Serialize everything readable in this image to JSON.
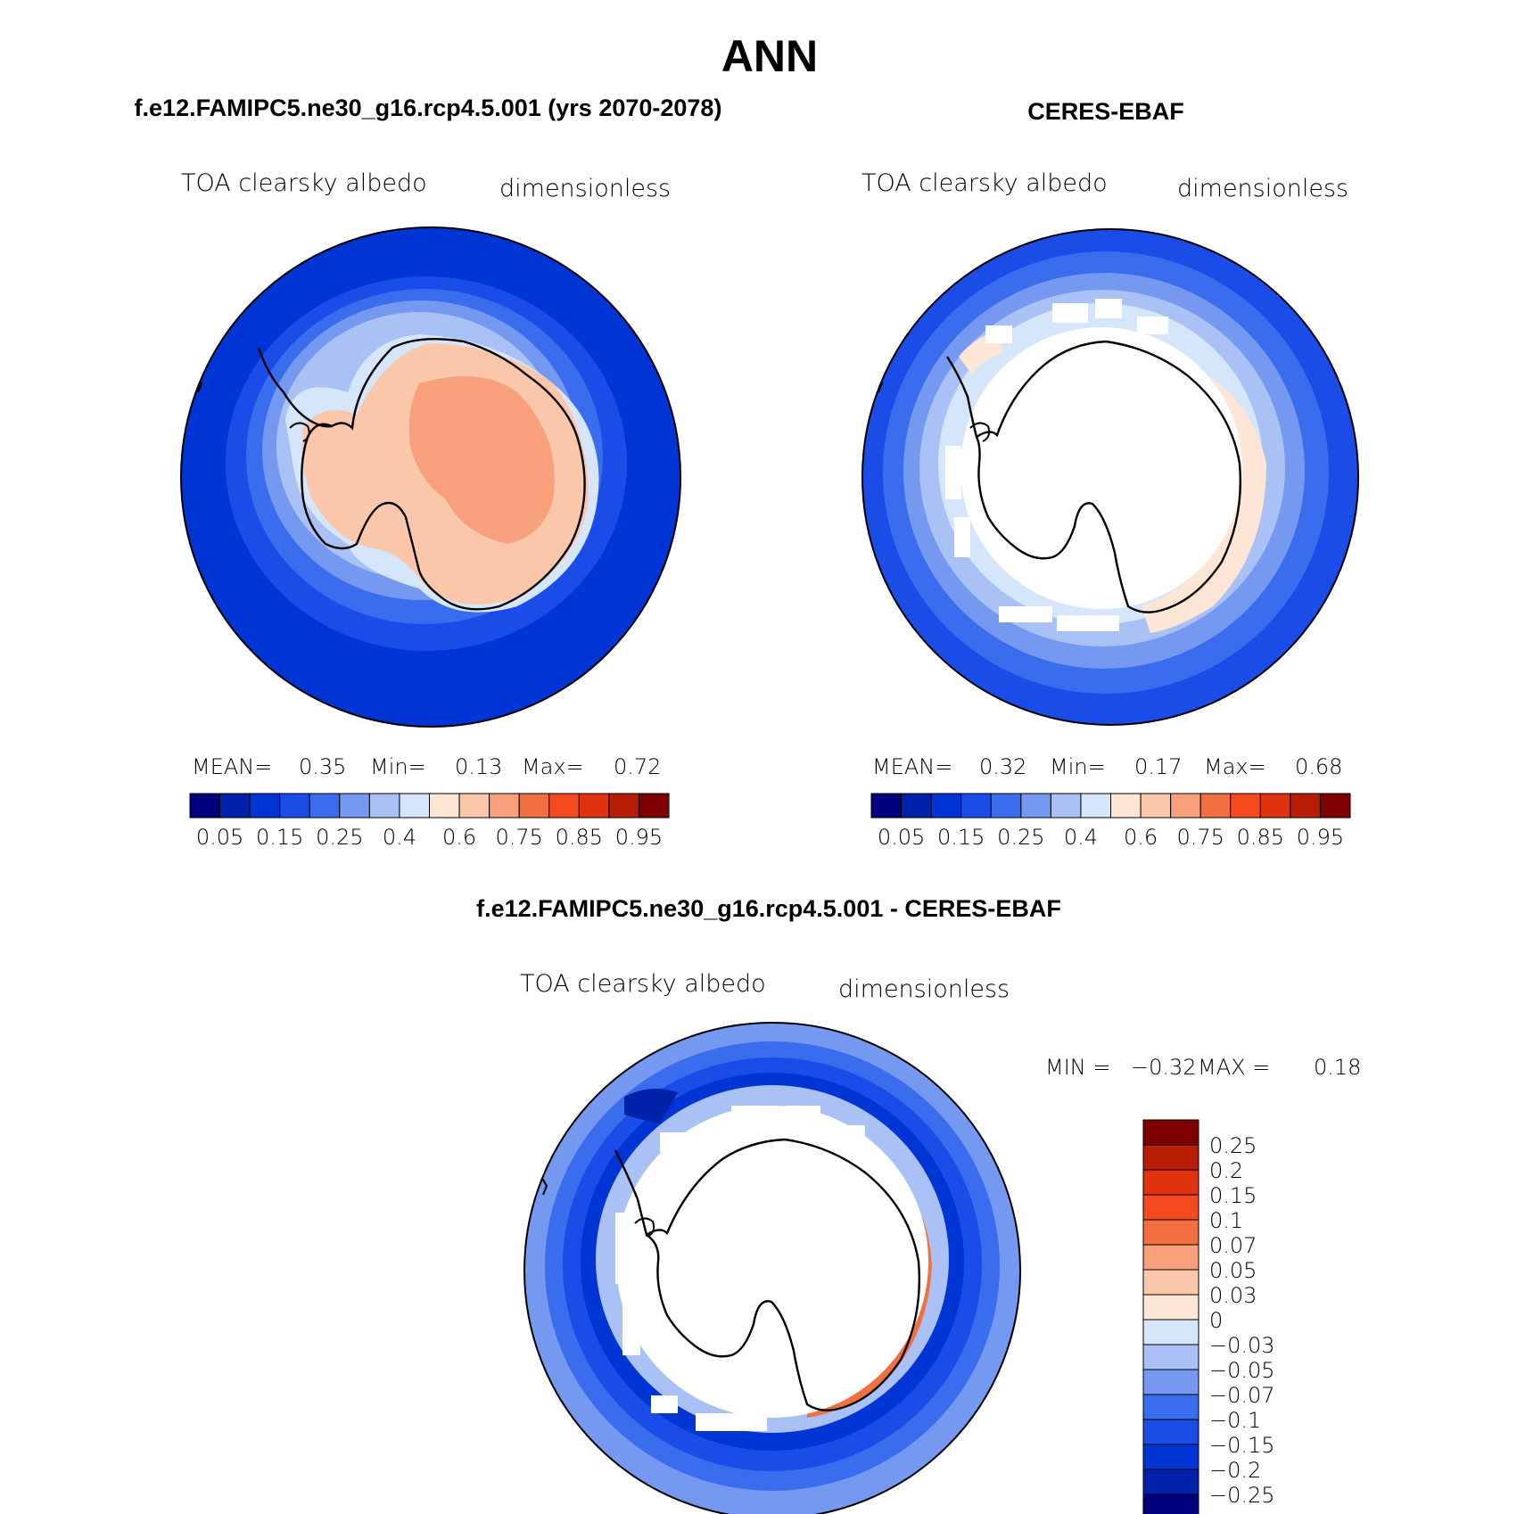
{
  "title": "ANN",
  "panels": [
    {
      "header": "f.e12.FAMIPC5.ne30_g16.rcp4.5.001 (yrs 2070-2078)",
      "variable": "TOA clearsky albedo",
      "units": "dimensionless",
      "stats": {
        "mean_label": "MEAN=",
        "mean": "0.35",
        "min_label": "Min=",
        "min": "0.13",
        "max_label": "Max=",
        "max": "0.72"
      }
    },
    {
      "header": "CERES-EBAF",
      "variable": "TOA clearsky albedo",
      "units": "dimensionless",
      "stats": {
        "mean_label": "MEAN=",
        "mean": "0.32",
        "min_label": "Min=",
        "min": "0.17",
        "max_label": "Max=",
        "max": "0.68"
      }
    }
  ],
  "abs_colorbar": {
    "colors": [
      "#00007f",
      "#0022aa",
      "#0035d5",
      "#1a4de8",
      "#3a6cee",
      "#7598f0",
      "#aac1f5",
      "#d5e5fa",
      "#fde6d6",
      "#fbc7aa",
      "#f8a07c",
      "#f2703f",
      "#f44a1d",
      "#e0320f",
      "#b71e05",
      "#7f0000"
    ],
    "labels": [
      "0.05",
      "0.15",
      "0.25",
      "0.4",
      "0.6",
      "0.75",
      "0.85",
      "0.95"
    ]
  },
  "diff_panel": {
    "header": "f.e12.FAMIPC5.ne30_g16.rcp4.5.001 - CERES-EBAF",
    "variable": "TOA clearsky albedo",
    "units": "dimensionless",
    "stats": {
      "min_label": "MIN =",
      "min": "−0.32",
      "max_label": "MAX =",
      "max": "0.18"
    }
  },
  "diff_colorbar": {
    "colors_top_to_bottom": [
      "#7f0000",
      "#b71e05",
      "#e0320f",
      "#f44a1d",
      "#f2703f",
      "#f8a07c",
      "#fbc7aa",
      "#fde6d6",
      "#d5e5fa",
      "#aac1f5",
      "#7598f0",
      "#3a6cee",
      "#1a4de8",
      "#0035d5",
      "#0022aa",
      "#00007f"
    ],
    "labels": [
      "0.25",
      "0.2",
      "0.15",
      "0.1",
      "0.07",
      "0.05",
      "0.03",
      "0",
      "−0.03",
      "−0.05",
      "−0.07",
      "−0.1",
      "−0.15",
      "−0.2",
      "−0.25"
    ]
  }
}
